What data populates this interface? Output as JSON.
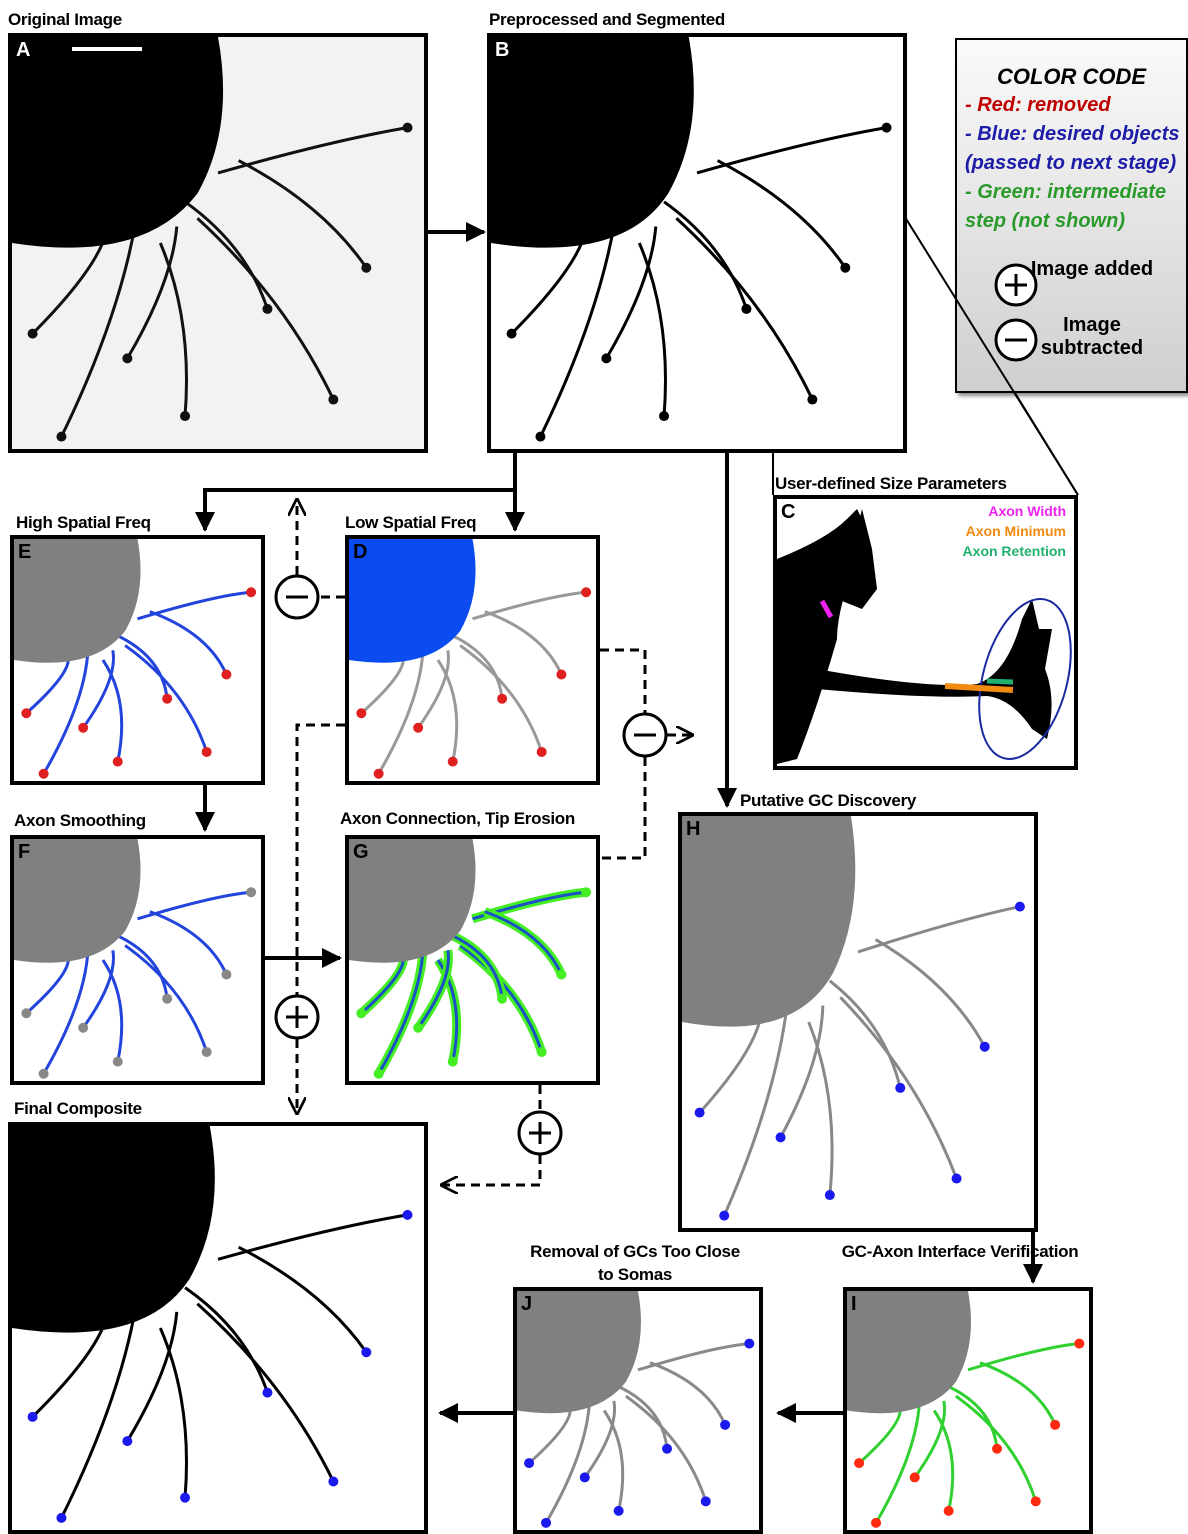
{
  "panels": [
    {
      "letter": "A",
      "title": "Original Image"
    },
    {
      "letter": "B",
      "title": "Preprocessed and Segmented"
    },
    {
      "letter": "C",
      "title": "User-defined Size Parameters"
    },
    {
      "letter": "E",
      "title": "High Spatial Freq"
    },
    {
      "letter": "D",
      "title": "Low Spatial Freq"
    },
    {
      "letter": "F",
      "title": "Axon Smoothing"
    },
    {
      "letter": "G",
      "title": "Axon Connection, Tip Erosion"
    },
    {
      "letter": "H",
      "title": "Putative GC Discovery"
    },
    {
      "title": "Final Composite"
    },
    {
      "letter": "J",
      "title": "Removal of GCs Too Close to Somas"
    },
    {
      "letter": "I",
      "title": "GC-Axon Interface Verification"
    }
  ],
  "size_params": [
    "Axon Width",
    "Axon Minimum",
    "Axon Retention"
  ],
  "legend": {
    "title": "COLOR CODE",
    "items": [
      "- Red: removed",
      "- Blue: desired objects (passed to next stage)",
      "- Green: intermediate step (not shown)"
    ],
    "symbols": [
      "Image added",
      "Image subtracted"
    ]
  }
}
